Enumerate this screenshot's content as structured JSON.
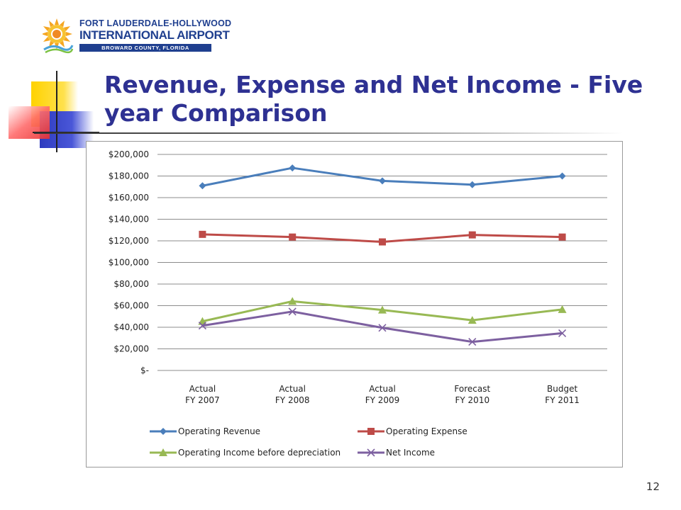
{
  "logo": {
    "line1": "FORT LAUDERDALE-HOLLYWOOD",
    "line2": "INTERNATIONAL AIRPORT",
    "line3": "BROWARD COUNTY, FLORIDA"
  },
  "slide": {
    "title": "Revenue, Expense and Net Income - Five year Comparison",
    "page_number": "12"
  },
  "colors": {
    "title": "#2e3192",
    "operating_revenue": "#4a7ebb",
    "operating_expense": "#be4b48",
    "operating_income": "#98b954",
    "net_income": "#7d60a0"
  },
  "chart_data": {
    "type": "line",
    "title": "",
    "xlabel": "",
    "ylabel": "",
    "categories": [
      [
        "Actual",
        "FY 2007"
      ],
      [
        "Actual",
        "FY 2008"
      ],
      [
        "Actual",
        "FY 2009"
      ],
      [
        "Forecast",
        "FY 2010"
      ],
      [
        "Budget",
        "FY 2011"
      ]
    ],
    "y_ticks": [
      "$-",
      "$20,000",
      "$40,000",
      "$60,000",
      "$80,000",
      "$100,000",
      "$120,000",
      "$140,000",
      "$160,000",
      "$180,000",
      "$200,000"
    ],
    "ylim": [
      0,
      200000
    ],
    "grid": true,
    "legend_position": "bottom",
    "series": [
      {
        "name": "Operating Revenue",
        "marker": "diamond",
        "color": "#4a7ebb",
        "values": [
          171000,
          187500,
          175500,
          172000,
          180000
        ]
      },
      {
        "name": "Operating Expense",
        "marker": "square",
        "color": "#be4b48",
        "values": [
          126000,
          123500,
          119000,
          125500,
          123500
        ]
      },
      {
        "name": "Operating Income  before depreciation",
        "marker": "triangle",
        "color": "#98b954",
        "values": [
          45500,
          64000,
          56000,
          46500,
          56500
        ]
      },
      {
        "name": "Net Income",
        "marker": "x",
        "color": "#7d60a0",
        "values": [
          41500,
          54500,
          39500,
          26500,
          34500
        ]
      }
    ]
  }
}
